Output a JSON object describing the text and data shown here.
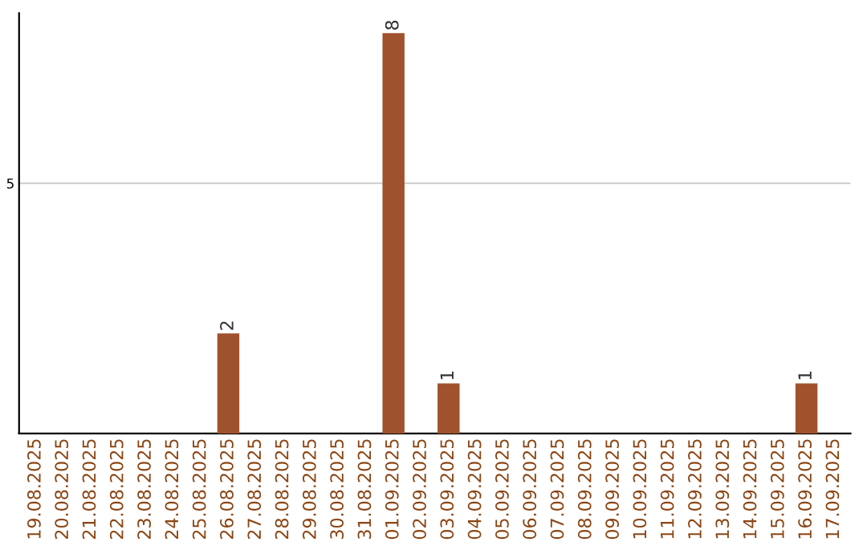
{
  "chart_data": {
    "type": "bar",
    "categories": [
      "19.08.2025",
      "20.08.2025",
      "21.08.2025",
      "22.08.2025",
      "23.08.2025",
      "24.08.2025",
      "25.08.2025",
      "26.08.2025",
      "27.08.2025",
      "28.08.2025",
      "29.08.2025",
      "30.08.2025",
      "31.08.2025",
      "01.09.2025",
      "02.09.2025",
      "03.09.2025",
      "04.09.2025",
      "05.09.2025",
      "06.09.2025",
      "07.09.2025",
      "08.09.2025",
      "09.09.2025",
      "10.09.2025",
      "11.09.2025",
      "12.09.2025",
      "13.09.2025",
      "14.09.2025",
      "15.09.2025",
      "16.09.2025",
      "17.09.2025"
    ],
    "values": [
      0,
      0,
      0,
      0,
      0,
      0,
      0,
      2,
      0,
      0,
      0,
      0,
      0,
      8,
      0,
      1,
      0,
      0,
      0,
      0,
      0,
      0,
      0,
      0,
      0,
      0,
      0,
      0,
      1,
      0
    ],
    "value_labels": [
      null,
      null,
      null,
      null,
      null,
      null,
      null,
      "2",
      null,
      null,
      null,
      null,
      null,
      "8",
      null,
      "1",
      null,
      null,
      null,
      null,
      null,
      null,
      null,
      null,
      null,
      null,
      null,
      null,
      "1",
      null
    ],
    "color": "#a0522d",
    "ylim": [
      0,
      8.4
    ],
    "yticks": [
      5
    ],
    "grid": "y"
  }
}
